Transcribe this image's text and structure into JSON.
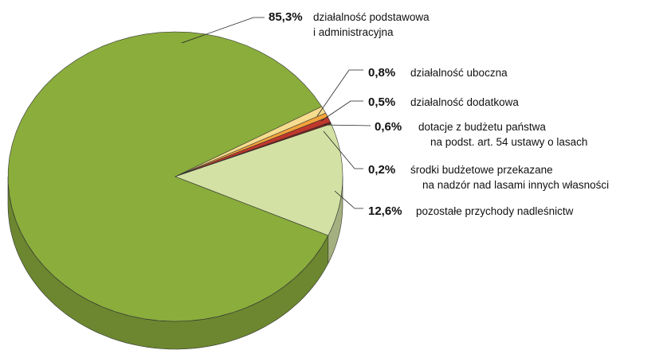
{
  "chart_data": {
    "type": "pie",
    "categories": [
      "działalność podstawowa\ni administracyjna",
      "działalność uboczna",
      "działalność dodatkowa",
      "dotacje z budżetu państwa\nna podst. art. 54 ustawy o lasach",
      "środki budżetowe przekazane\nna nadzór nad lasami innych własności",
      "pozostałe przychody nadleśnictw"
    ],
    "values": [
      85.3,
      0.8,
      0.5,
      0.6,
      0.2,
      12.6
    ],
    "value_labels": [
      "85,3%",
      "0,8%",
      "0,5%",
      "0,6%",
      "0,2%",
      "12,6%"
    ],
    "colors": [
      "#8aad3c",
      "#f6dc8e",
      "#f2a33a",
      "#c0372c",
      "#7a1f1a",
      "#d3e2a4"
    ]
  }
}
